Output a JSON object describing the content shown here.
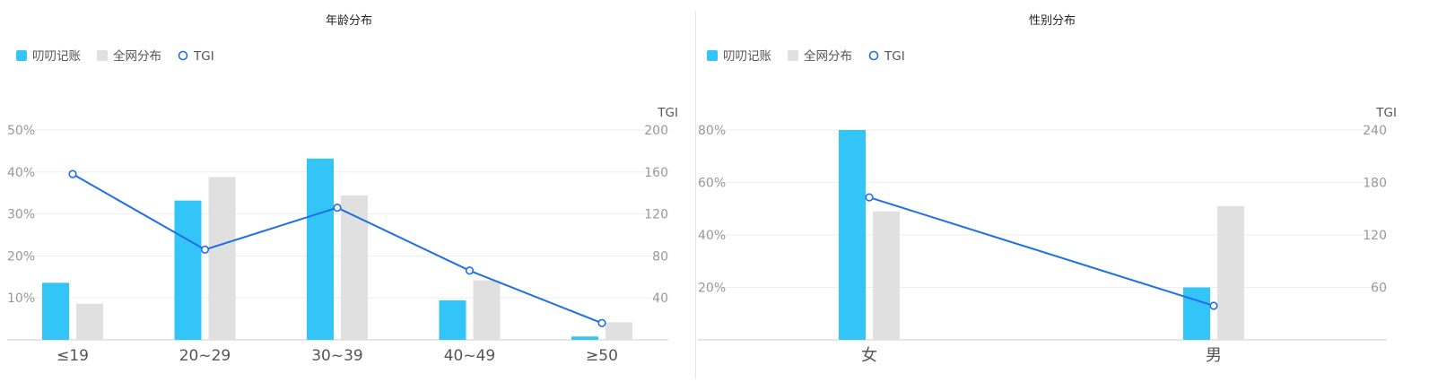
{
  "colors": {
    "primary_bar": "#33c5f8",
    "secondary_bar": "#e0e0e0",
    "tgi_line": "#1f6fe8",
    "grid": "#eeeeee",
    "axis": "#cccccc",
    "tick_text": "#999999",
    "label_text": "#555555",
    "title_text": "#222222"
  },
  "icons": {
    "bar_legend": "square-swatch",
    "line_legend": "hollow-circle"
  },
  "chart_data": [
    {
      "type": "bar",
      "title": "年龄分布",
      "legend": [
        {
          "name": "叨叨记账",
          "kind": "bar"
        },
        {
          "name": "全网分布",
          "kind": "bar"
        },
        {
          "name": "TGI",
          "kind": "line"
        }
      ],
      "legend_position": "top-left",
      "categories": [
        "≤19",
        "20~29",
        "30~39",
        "40~49",
        "≥50"
      ],
      "series": [
        {
          "name": "叨叨记账",
          "type": "bar",
          "axis": "left",
          "values": [
            13.6,
            33.2,
            43.2,
            9.4,
            0.8
          ]
        },
        {
          "name": "全网分布",
          "type": "bar",
          "axis": "left",
          "values": [
            8.6,
            38.8,
            34.4,
            14.2,
            4.2
          ]
        },
        {
          "name": "TGI",
          "type": "line",
          "axis": "right",
          "values": [
            158,
            86,
            126,
            66,
            16
          ]
        }
      ],
      "y_left": {
        "ticks": [
          "50%",
          "40%",
          "30%",
          "20%",
          "10%"
        ],
        "tick_values": [
          50,
          40,
          30,
          20,
          10
        ],
        "range": [
          0,
          50
        ]
      },
      "y_right": {
        "label": "TGI",
        "ticks": [
          "200",
          "160",
          "120",
          "80",
          "40"
        ],
        "tick_values": [
          200,
          160,
          120,
          80,
          40
        ],
        "range": [
          0,
          200
        ]
      },
      "grid": true
    },
    {
      "type": "bar",
      "title": "性别分布",
      "legend": [
        {
          "name": "叨叨记账",
          "kind": "bar"
        },
        {
          "name": "全网分布",
          "kind": "bar"
        },
        {
          "name": "TGI",
          "kind": "line"
        }
      ],
      "legend_position": "top-left",
      "categories": [
        "女",
        "男"
      ],
      "series": [
        {
          "name": "叨叨记账",
          "type": "bar",
          "axis": "left",
          "values": [
            80,
            20
          ]
        },
        {
          "name": "全网分布",
          "type": "bar",
          "axis": "left",
          "values": [
            49,
            51
          ]
        },
        {
          "name": "TGI",
          "type": "line",
          "axis": "right",
          "values": [
            163,
            39
          ]
        }
      ],
      "y_left": {
        "ticks": [
          "80%",
          "60%",
          "40%",
          "20%"
        ],
        "tick_values": [
          80,
          60,
          40,
          20
        ],
        "range": [
          0,
          80
        ]
      },
      "y_right": {
        "label": "TGI",
        "ticks": [
          "240",
          "180",
          "120",
          "60"
        ],
        "tick_values": [
          240,
          180,
          120,
          60
        ],
        "range": [
          0,
          240
        ]
      },
      "grid": true
    }
  ]
}
